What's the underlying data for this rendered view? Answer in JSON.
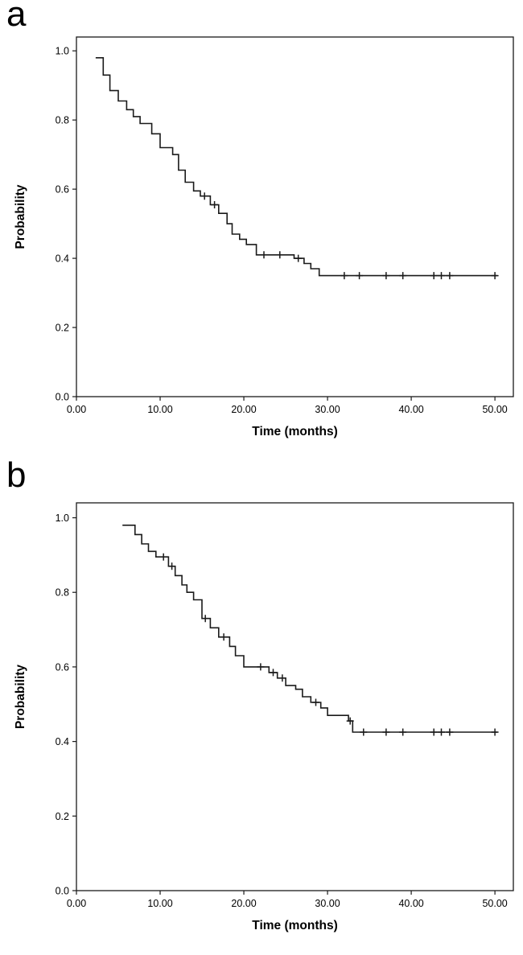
{
  "colors": {
    "background": "#ffffff",
    "line": "#1a1a1a",
    "text": "#000000"
  },
  "chart_data": [
    {
      "id": "a",
      "panel_label": "a",
      "type": "line",
      "style": "step-after",
      "subtype": "kaplan-meier-survival",
      "title": "",
      "xlabel": "Time (months)",
      "ylabel": "Probability",
      "xlim": [
        0,
        52.2
      ],
      "ylim": [
        0,
        1.04
      ],
      "x_tick_values": [
        0,
        10,
        20,
        30,
        40,
        50
      ],
      "x_tick_labels": [
        "0.00",
        "10.00",
        "20.00",
        "30.00",
        "40.00",
        "50.00"
      ],
      "y_tick_values": [
        0.0,
        0.2,
        0.4,
        0.6,
        0.8,
        1.0
      ],
      "y_tick_labels": [
        "0.0",
        "0.2",
        "0.4",
        "0.6",
        "0.8",
        "1.0"
      ],
      "grid": false,
      "legend": false,
      "steps": [
        [
          2.3,
          0.98
        ],
        [
          3.2,
          0.93
        ],
        [
          4.0,
          0.885
        ],
        [
          5.0,
          0.855
        ],
        [
          6.0,
          0.83
        ],
        [
          6.8,
          0.81
        ],
        [
          7.6,
          0.79
        ],
        [
          9.0,
          0.76
        ],
        [
          10.0,
          0.72
        ],
        [
          11.5,
          0.7
        ],
        [
          12.2,
          0.655
        ],
        [
          13.0,
          0.62
        ],
        [
          14.0,
          0.595
        ],
        [
          14.8,
          0.58
        ],
        [
          16.0,
          0.555
        ],
        [
          17.0,
          0.53
        ],
        [
          18.0,
          0.5
        ],
        [
          18.6,
          0.47
        ],
        [
          19.5,
          0.455
        ],
        [
          20.3,
          0.44
        ],
        [
          21.5,
          0.41
        ],
        [
          26.0,
          0.4
        ],
        [
          27.2,
          0.385
        ],
        [
          28.0,
          0.37
        ],
        [
          29.0,
          0.35
        ]
      ],
      "end_time": 50.3,
      "censors": [
        [
          15.3,
          0.58
        ],
        [
          16.5,
          0.555
        ],
        [
          22.4,
          0.41
        ],
        [
          24.3,
          0.41
        ],
        [
          26.5,
          0.4
        ],
        [
          32.0,
          0.35
        ],
        [
          33.8,
          0.35
        ],
        [
          37.0,
          0.35
        ],
        [
          39.0,
          0.35
        ],
        [
          42.7,
          0.35
        ],
        [
          43.6,
          0.35
        ],
        [
          44.6,
          0.35
        ],
        [
          50.0,
          0.35
        ]
      ]
    },
    {
      "id": "b",
      "panel_label": "b",
      "type": "line",
      "style": "step-after",
      "subtype": "kaplan-meier-survival",
      "title": "",
      "xlabel": "Time (months)",
      "ylabel": "Probability",
      "xlim": [
        0,
        52.2
      ],
      "ylim": [
        0,
        1.04
      ],
      "x_tick_values": [
        0,
        10,
        20,
        30,
        40,
        50
      ],
      "x_tick_labels": [
        "0.00",
        "10.00",
        "20.00",
        "30.00",
        "40.00",
        "50.00"
      ],
      "y_tick_values": [
        0.0,
        0.2,
        0.4,
        0.6,
        0.8,
        1.0
      ],
      "y_tick_labels": [
        "0.0",
        "0.2",
        "0.4",
        "0.6",
        "0.8",
        "1.0"
      ],
      "grid": false,
      "legend": false,
      "steps": [
        [
          5.5,
          0.98
        ],
        [
          7.0,
          0.955
        ],
        [
          7.8,
          0.93
        ],
        [
          8.6,
          0.91
        ],
        [
          9.5,
          0.895
        ],
        [
          11.0,
          0.87
        ],
        [
          11.8,
          0.845
        ],
        [
          12.6,
          0.82
        ],
        [
          13.2,
          0.8
        ],
        [
          14.0,
          0.78
        ],
        [
          15.0,
          0.73
        ],
        [
          16.0,
          0.705
        ],
        [
          17.0,
          0.68
        ],
        [
          18.3,
          0.655
        ],
        [
          19.0,
          0.63
        ],
        [
          20.0,
          0.6
        ],
        [
          23.0,
          0.585
        ],
        [
          24.0,
          0.57
        ],
        [
          25.0,
          0.55
        ],
        [
          26.2,
          0.54
        ],
        [
          27.0,
          0.52
        ],
        [
          28.0,
          0.505
        ],
        [
          29.2,
          0.49
        ],
        [
          30.0,
          0.47
        ],
        [
          32.5,
          0.455
        ],
        [
          33.0,
          0.425
        ]
      ],
      "end_time": 50.3,
      "censors": [
        [
          10.4,
          0.895
        ],
        [
          11.4,
          0.87
        ],
        [
          15.4,
          0.73
        ],
        [
          17.6,
          0.68
        ],
        [
          22.0,
          0.6
        ],
        [
          23.5,
          0.585
        ],
        [
          24.6,
          0.57
        ],
        [
          28.6,
          0.505
        ],
        [
          32.7,
          0.455
        ],
        [
          34.3,
          0.425
        ],
        [
          37.0,
          0.425
        ],
        [
          39.0,
          0.425
        ],
        [
          42.7,
          0.425
        ],
        [
          43.6,
          0.425
        ],
        [
          44.6,
          0.425
        ],
        [
          50.0,
          0.425
        ]
      ]
    }
  ]
}
